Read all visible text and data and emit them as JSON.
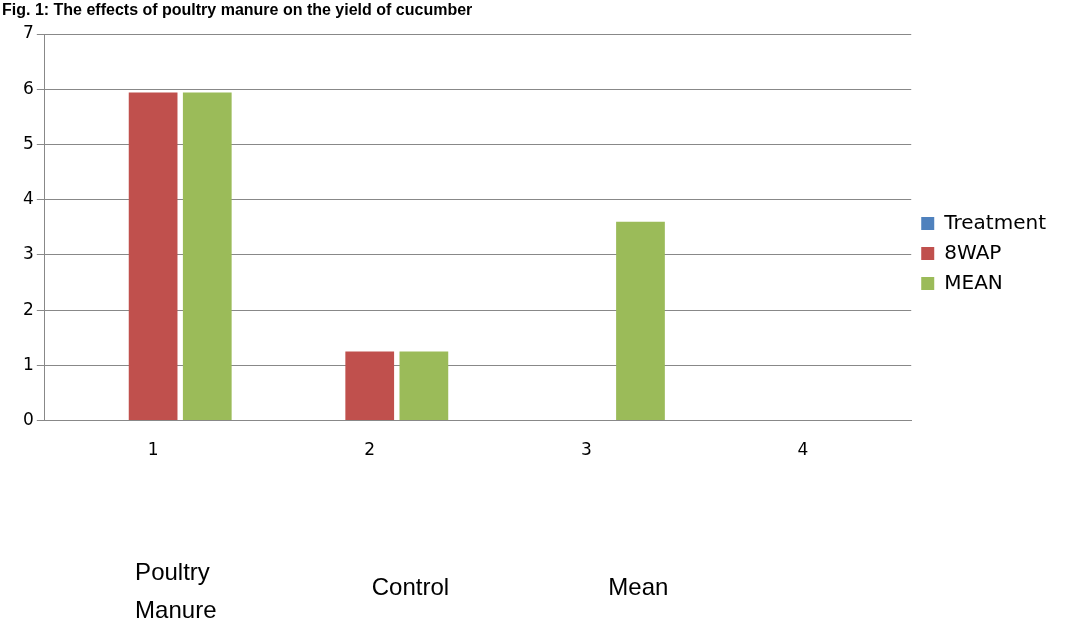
{
  "chart_data": {
    "type": "bar",
    "title": "Fig. 1: The effects of poultry manure on the yield of cucumber",
    "categories": [
      "1",
      "2",
      "3",
      "4"
    ],
    "series": [
      {
        "name": "Treatment",
        "color": "#4f81bd",
        "values": [
          null,
          null,
          null,
          null
        ]
      },
      {
        "name": "8WAP",
        "color": "#c0504d",
        "values": [
          5.94,
          1.25,
          null,
          null
        ]
      },
      {
        "name": "MEAN",
        "color": "#9bbb59",
        "values": [
          5.94,
          1.25,
          3.6,
          null
        ]
      }
    ],
    "ylim": [
      0,
      7
    ],
    "yticks": [
      0,
      1,
      2,
      3,
      4,
      5,
      6,
      7
    ],
    "grid": "y",
    "legend": "right",
    "annotations": [
      "Poultry Manure",
      "Control",
      "Mean"
    ]
  }
}
